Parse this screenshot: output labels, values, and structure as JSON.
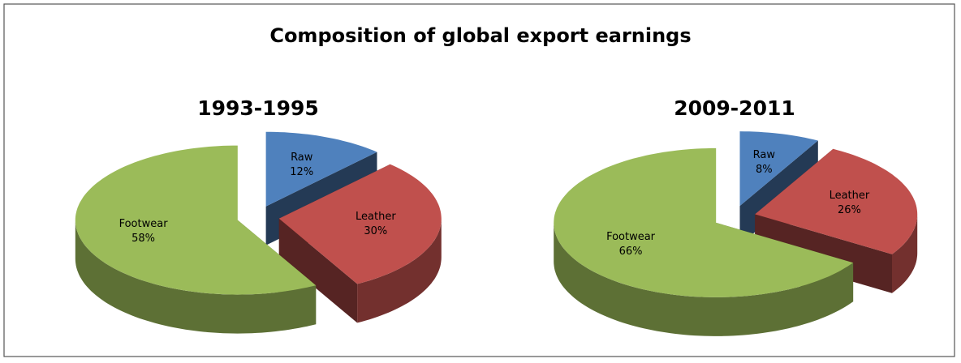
{
  "title": "Composition of global export earnings",
  "chart_data": [
    {
      "type": "pie",
      "title": "1993-1995",
      "categories": [
        "Raw",
        "Leather",
        "Footwear"
      ],
      "values": [
        12,
        30,
        58
      ],
      "value_labels": [
        "12%",
        "30%",
        "58%"
      ],
      "colors": [
        "#4f81bd",
        "#c0504d",
        "#9bbb59"
      ]
    },
    {
      "type": "pie",
      "title": "2009-2011",
      "categories": [
        "Raw",
        "Leather",
        "Footwear"
      ],
      "values": [
        8,
        26,
        66
      ],
      "value_labels": [
        "8%",
        "26%",
        "66%"
      ],
      "colors": [
        "#4f81bd",
        "#c0504d",
        "#9bbb59"
      ]
    }
  ]
}
